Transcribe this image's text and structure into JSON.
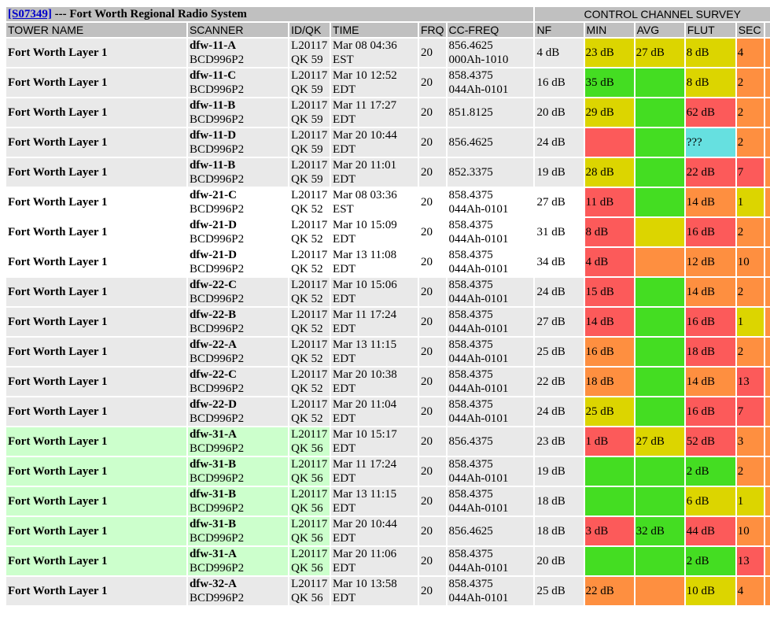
{
  "header": {
    "system_id": "[S07349]",
    "system_title": " --- Fort Worth Regional Radio System",
    "survey_title": "CONTROL CHANNEL SURVEY"
  },
  "columns": [
    "TOWER NAME",
    "SCANNER",
    "ID/QK",
    "TIME",
    "FRQ",
    "CC-FREQ",
    "NF",
    "MIN",
    "AVG",
    "FLUT",
    "SEC"
  ],
  "colors": {
    "yellow": "#dcd500",
    "red": "#fc5a5a",
    "orange": "#fe8f40",
    "green": "#44dd22",
    "cyan": "#66e0e0",
    "row_gray": "#e9e9e9",
    "row_green": "#ccffcc",
    "header_gray": "#c0c0c0",
    "link_blue": "#0000cc"
  },
  "rows": [
    {
      "tower": "Fort Worth Layer 1",
      "scanner": "dfw-11-A",
      "model": "BCD996P2",
      "id": "L20117",
      "qk": "QK 59",
      "date": "Mar 08 04:36",
      "tz": "EST",
      "frq": "20",
      "ccfreq": "856.4625",
      "cccode": "000Ah-1010",
      "nf": "4 dB",
      "min": "23 dB",
      "min_c": "yellow",
      "avg": "27 dB",
      "avg_c": "yellow",
      "flut": "8 dB",
      "flut_c": "yellow",
      "sec": "4",
      "sec_c": "orange",
      "bg": "gray"
    },
    {
      "tower": "Fort Worth Layer 1",
      "scanner": "dfw-11-C",
      "model": "BCD996P2",
      "id": "L20117",
      "qk": "QK 59",
      "date": "Mar 10 12:52",
      "tz": "EDT",
      "frq": "20",
      "ccfreq": "858.4375",
      "cccode": "044Ah-0101",
      "nf": "16 dB",
      "min": "35 dB",
      "min_c": "green",
      "avg": "",
      "avg_c": "green",
      "flut": "8 dB",
      "flut_c": "yellow",
      "sec": "2",
      "sec_c": "orange",
      "bg": "gray"
    },
    {
      "tower": "Fort Worth Layer 1",
      "scanner": "dfw-11-B",
      "model": "BCD996P2",
      "id": "L20117",
      "qk": "QK 59",
      "date": "Mar 11 17:27",
      "tz": "EDT",
      "frq": "20",
      "ccfreq": "851.8125",
      "cccode": "",
      "nf": "20 dB",
      "min": "29 dB",
      "min_c": "yellow",
      "avg": "",
      "avg_c": "green",
      "flut": "62 dB",
      "flut_c": "red",
      "sec": "2",
      "sec_c": "orange",
      "bg": "gray"
    },
    {
      "tower": "Fort Worth Layer 1",
      "scanner": "dfw-11-D",
      "model": "BCD996P2",
      "id": "L20117",
      "qk": "QK 59",
      "date": "Mar 20 10:44",
      "tz": "EDT",
      "frq": "20",
      "ccfreq": "856.4625",
      "cccode": "",
      "nf": "24 dB",
      "min": "",
      "min_c": "red",
      "avg": "",
      "avg_c": "green",
      "flut": "???",
      "flut_c": "cyan",
      "sec": "2",
      "sec_c": "orange",
      "bg": "gray"
    },
    {
      "tower": "Fort Worth Layer 1",
      "scanner": "dfw-11-B",
      "model": "BCD996P2",
      "id": "L20117",
      "qk": "QK 59",
      "date": "Mar 20 11:01",
      "tz": "EDT",
      "frq": "20",
      "ccfreq": "852.3375",
      "cccode": "",
      "nf": "19 dB",
      "min": "28 dB",
      "min_c": "yellow",
      "avg": "",
      "avg_c": "green",
      "flut": "22 dB",
      "flut_c": "red",
      "sec": "7",
      "sec_c": "red",
      "bg": "gray"
    },
    {
      "tower": "Fort Worth Layer 1",
      "scanner": "dfw-21-C",
      "model": "BCD996P2",
      "id": "L20117",
      "qk": "QK 52",
      "date": "Mar 08 03:36",
      "tz": "EST",
      "frq": "20",
      "ccfreq": "858.4375",
      "cccode": "044Ah-0101",
      "nf": "27 dB",
      "min": "11 dB",
      "min_c": "red",
      "avg": "",
      "avg_c": "green",
      "flut": "14 dB",
      "flut_c": "orange",
      "sec": "1",
      "sec_c": "yellow",
      "bg": "white"
    },
    {
      "tower": "Fort Worth Layer 1",
      "scanner": "dfw-21-D",
      "model": "BCD996P2",
      "id": "L20117",
      "qk": "QK 52",
      "date": "Mar 10 15:09",
      "tz": "EDT",
      "frq": "20",
      "ccfreq": "858.4375",
      "cccode": "044Ah-0101",
      "nf": "31 dB",
      "min": "8 dB",
      "min_c": "red",
      "avg": "",
      "avg_c": "yellow",
      "flut": "16 dB",
      "flut_c": "red",
      "sec": "2",
      "sec_c": "orange",
      "bg": "white"
    },
    {
      "tower": "Fort Worth Layer 1",
      "scanner": "dfw-21-D",
      "model": "BCD996P2",
      "id": "L20117",
      "qk": "QK 52",
      "date": "Mar 13 11:08",
      "tz": "EDT",
      "frq": "20",
      "ccfreq": "858.4375",
      "cccode": "044Ah-0101",
      "nf": "34 dB",
      "min": "4 dB",
      "min_c": "red",
      "avg": "",
      "avg_c": "orange",
      "flut": "12 dB",
      "flut_c": "orange",
      "sec": "10",
      "sec_c": "orange",
      "bg": "white"
    },
    {
      "tower": "Fort Worth Layer 1",
      "scanner": "dfw-22-C",
      "model": "BCD996P2",
      "id": "L20117",
      "qk": "QK 52",
      "date": "Mar 10 15:06",
      "tz": "EDT",
      "frq": "20",
      "ccfreq": "858.4375",
      "cccode": "044Ah-0101",
      "nf": "24 dB",
      "min": "15 dB",
      "min_c": "red",
      "avg": "",
      "avg_c": "green",
      "flut": "14 dB",
      "flut_c": "orange",
      "sec": "2",
      "sec_c": "orange",
      "bg": "gray"
    },
    {
      "tower": "Fort Worth Layer 1",
      "scanner": "dfw-22-B",
      "model": "BCD996P2",
      "id": "L20117",
      "qk": "QK 52",
      "date": "Mar 11 17:24",
      "tz": "EDT",
      "frq": "20",
      "ccfreq": "858.4375",
      "cccode": "044Ah-0101",
      "nf": "27 dB",
      "min": "14 dB",
      "min_c": "red",
      "avg": "",
      "avg_c": "green",
      "flut": "16 dB",
      "flut_c": "red",
      "sec": "1",
      "sec_c": "yellow",
      "bg": "gray"
    },
    {
      "tower": "Fort Worth Layer 1",
      "scanner": "dfw-22-A",
      "model": "BCD996P2",
      "id": "L20117",
      "qk": "QK 52",
      "date": "Mar 13 11:15",
      "tz": "EDT",
      "frq": "20",
      "ccfreq": "858.4375",
      "cccode": "044Ah-0101",
      "nf": "25 dB",
      "min": "16 dB",
      "min_c": "orange",
      "avg": "",
      "avg_c": "green",
      "flut": "18 dB",
      "flut_c": "red",
      "sec": "2",
      "sec_c": "orange",
      "bg": "gray"
    },
    {
      "tower": "Fort Worth Layer 1",
      "scanner": "dfw-22-C",
      "model": "BCD996P2",
      "id": "L20117",
      "qk": "QK 52",
      "date": "Mar 20 10:38",
      "tz": "EDT",
      "frq": "20",
      "ccfreq": "858.4375",
      "cccode": "044Ah-0101",
      "nf": "22 dB",
      "min": "18 dB",
      "min_c": "orange",
      "avg": "",
      "avg_c": "green",
      "flut": "14 dB",
      "flut_c": "orange",
      "sec": "13",
      "sec_c": "red",
      "bg": "gray"
    },
    {
      "tower": "Fort Worth Layer 1",
      "scanner": "dfw-22-D",
      "model": "BCD996P2",
      "id": "L20117",
      "qk": "QK 52",
      "date": "Mar 20 11:04",
      "tz": "EDT",
      "frq": "20",
      "ccfreq": "858.4375",
      "cccode": "044Ah-0101",
      "nf": "24 dB",
      "min": "25 dB",
      "min_c": "yellow",
      "avg": "",
      "avg_c": "green",
      "flut": "16 dB",
      "flut_c": "red",
      "sec": "7",
      "sec_c": "red",
      "bg": "gray"
    },
    {
      "tower": "Fort Worth Layer 1",
      "scanner": "dfw-31-A",
      "model": "BCD996P2",
      "id": "L20117",
      "qk": "QK 56",
      "date": "Mar 10 15:17",
      "tz": "EDT",
      "frq": "20",
      "ccfreq": "856.4375",
      "cccode": "",
      "nf": "23 dB",
      "min": "1 dB",
      "min_c": "red",
      "avg": "27 dB",
      "avg_c": "yellow",
      "flut": "52 dB",
      "flut_c": "red",
      "sec": "3",
      "sec_c": "orange",
      "bg": "green"
    },
    {
      "tower": "Fort Worth Layer 1",
      "scanner": "dfw-31-B",
      "model": "BCD996P2",
      "id": "L20117",
      "qk": "QK 56",
      "date": "Mar 11 17:24",
      "tz": "EDT",
      "frq": "20",
      "ccfreq": "858.4375",
      "cccode": "044Ah-0101",
      "nf": "19 dB",
      "min": "",
      "min_c": "green",
      "avg": "",
      "avg_c": "green",
      "flut": "2 dB",
      "flut_c": "green",
      "sec": "2",
      "sec_c": "orange",
      "bg": "green"
    },
    {
      "tower": "Fort Worth Layer 1",
      "scanner": "dfw-31-B",
      "model": "BCD996P2",
      "id": "L20117",
      "qk": "QK 56",
      "date": "Mar 13 11:15",
      "tz": "EDT",
      "frq": "20",
      "ccfreq": "858.4375",
      "cccode": "044Ah-0101",
      "nf": "18 dB",
      "min": "",
      "min_c": "green",
      "avg": "",
      "avg_c": "green",
      "flut": "6 dB",
      "flut_c": "yellow",
      "sec": "1",
      "sec_c": "yellow",
      "bg": "green"
    },
    {
      "tower": "Fort Worth Layer 1",
      "scanner": "dfw-31-B",
      "model": "BCD996P2",
      "id": "L20117",
      "qk": "QK 56",
      "date": "Mar 20 10:44",
      "tz": "EDT",
      "frq": "20",
      "ccfreq": "856.4625",
      "cccode": "",
      "nf": "18 dB",
      "min": "3 dB",
      "min_c": "red",
      "avg": "32 dB",
      "avg_c": "green",
      "flut": "44 dB",
      "flut_c": "red",
      "sec": "10",
      "sec_c": "orange",
      "bg": "green"
    },
    {
      "tower": "Fort Worth Layer 1",
      "scanner": "dfw-31-A",
      "model": "BCD996P2",
      "id": "L20117",
      "qk": "QK 56",
      "date": "Mar 20 11:06",
      "tz": "EDT",
      "frq": "20",
      "ccfreq": "858.4375",
      "cccode": "044Ah-0101",
      "nf": "20 dB",
      "min": "",
      "min_c": "green",
      "avg": "",
      "avg_c": "green",
      "flut": "2 dB",
      "flut_c": "green",
      "sec": "13",
      "sec_c": "red",
      "bg": "green"
    },
    {
      "tower": "Fort Worth Layer 1",
      "scanner": "dfw-32-A",
      "model": "BCD996P2",
      "id": "L20117",
      "qk": "QK 56",
      "date": "Mar 10 13:58",
      "tz": "EDT",
      "frq": "20",
      "ccfreq": "858.4375",
      "cccode": "044Ah-0101",
      "nf": "25 dB",
      "min": "22 dB",
      "min_c": "orange",
      "avg": "",
      "avg_c": "orange",
      "flut": "10 dB",
      "flut_c": "yellow",
      "sec": "4",
      "sec_c": "orange",
      "bg": "gray"
    }
  ]
}
